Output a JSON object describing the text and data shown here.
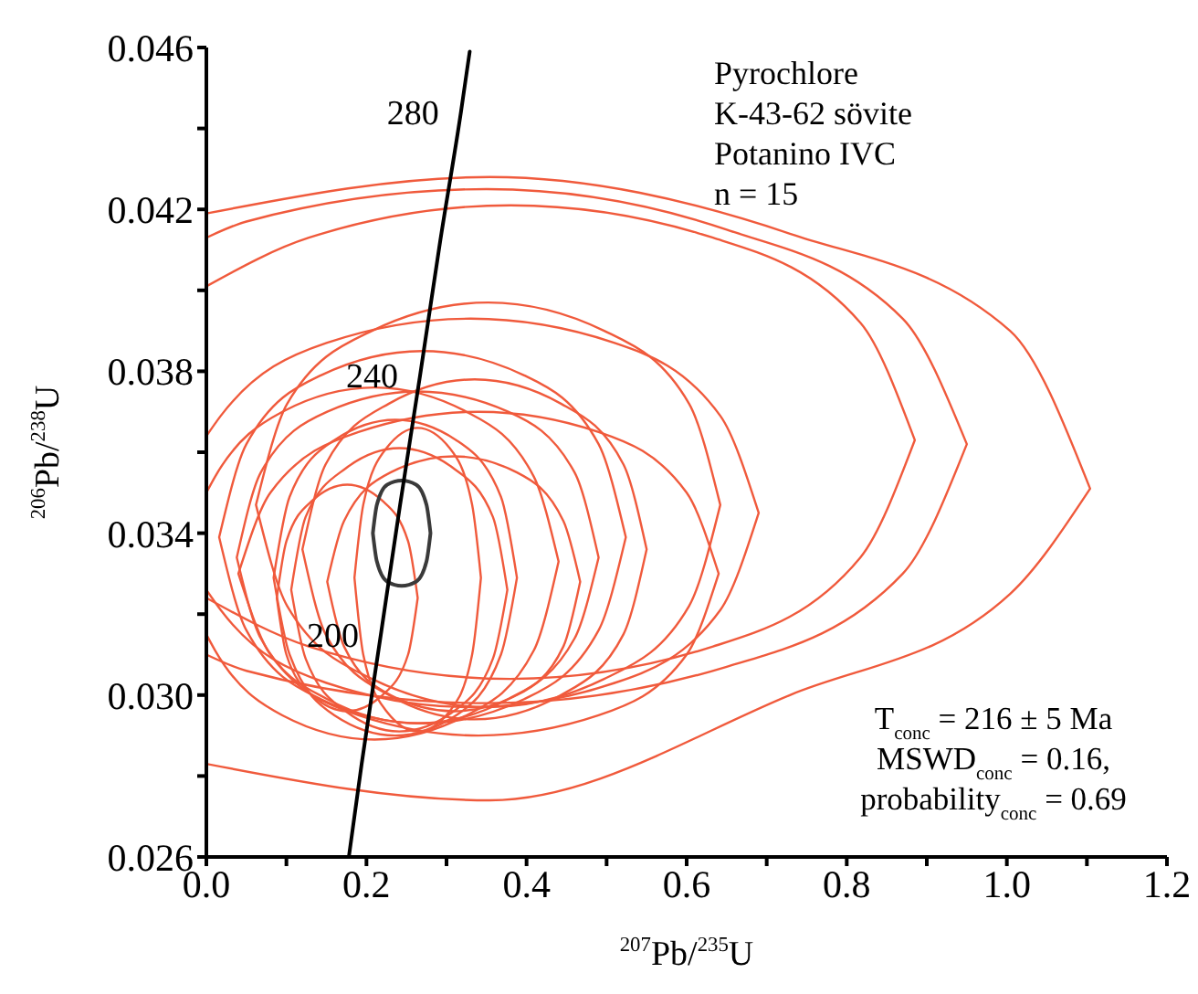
{
  "chart_data": {
    "type": "line",
    "xlabel": "$^{207}$Pb/$^{235}$U",
    "ylabel": "$^{206}$Pb/$^{238}$U",
    "marker": "none",
    "xlim": [
      0,
      1.2
    ],
    "ylim": [
      0.026,
      0.046
    ],
    "xticks": [
      {
        "value": 0,
        "label": "0.0"
      },
      {
        "value": 0.1,
        "label": null
      },
      0.2,
      {
        "value": 0.3,
        "label": null
      },
      0.4,
      {
        "value": 0.5,
        "label": null
      },
      0.6,
      {
        "value": 0.7,
        "label": null
      },
      0.8,
      {
        "value": 0.9,
        "label": null
      },
      {
        "value": 1,
        "label": "1.0"
      },
      {
        "value": 1.1,
        "label": null
      },
      1.2
    ],
    "yticks": [
      0.026,
      {
        "value": 0.028,
        "label": null
      },
      {
        "value": 0.03,
        "label": "0.030"
      },
      {
        "value": 0.032,
        "label": null
      },
      0.034,
      {
        "value": 0.036,
        "label": null
      },
      0.038,
      {
        "value": 0.04,
        "label": null
      },
      0.042,
      {
        "value": 0.044,
        "label": null
      },
      0.046
    ],
    "series": [
      {
        "color": "#f05a3c",
        "x": [
          0,
          0.354,
          0.729,
          1.004,
          1.104,
          null,
          0,
          0.354,
          0.729,
          1.004,
          1.104
        ],
        "values": [
          0.0419,
          0.0428,
          0.0414,
          0.039,
          0.0351,
          null,
          0.0283,
          0.0274,
          0.03,
          0.0325,
          0.0351
        ]
      },
      {
        "color": "#f05a3c",
        "x": [
          0,
          0.05,
          0.35,
          0.65,
          0.87,
          0.95,
          null,
          0,
          0.05,
          0.35,
          0.65,
          0.87,
          0.95
        ],
        "values": [
          0.0413,
          0.0417,
          0.0425,
          0.0415,
          0.0393,
          0.0362,
          null,
          0.031,
          0.0306,
          0.0298,
          0.0307,
          0.033,
          0.0362
        ]
      },
      {
        "color": "#f05a3c",
        "x": [
          0,
          0.128,
          0.38,
          0.633,
          0.817,
          0.885,
          null,
          0,
          0.128,
          0.38,
          0.633,
          0.817,
          0.885
        ],
        "values": [
          0.0401,
          0.0413,
          0.0421,
          0.0413,
          0.0392,
          0.0363,
          null,
          0.0324,
          0.0312,
          0.0304,
          0.0312,
          0.0334,
          0.0363
        ]
      },
      {
        "color": "#f05a3c",
        "x": [
          0.062,
          0.101,
          0.207,
          0.352,
          0.497,
          0.603,
          0.642,
          null,
          0.062,
          0.101,
          0.207,
          0.352,
          0.497,
          0.603,
          0.642
        ],
        "values": [
          0.0347,
          0.0372,
          0.039,
          0.0397,
          0.039,
          0.0372,
          0.0347,
          null,
          0.0347,
          0.0322,
          0.0304,
          0.0297,
          0.0304,
          0.0322,
          0.0347
        ]
      },
      {
        "color": "#f05a3c",
        "x": [
          0,
          0.018,
          0.15,
          0.33,
          0.51,
          0.642,
          0.69,
          null,
          0,
          0.018,
          0.15,
          0.33,
          0.51,
          0.642,
          0.69
        ],
        "values": [
          0.0364,
          0.0369,
          0.0387,
          0.0393,
          0.0387,
          0.0369,
          0.0345,
          null,
          0.0326,
          0.0321,
          0.0303,
          0.0297,
          0.0303,
          0.0321,
          0.0345
        ]
      },
      {
        "color": "#f05a3c",
        "x": [
          0.016,
          0.05,
          0.143,
          0.27,
          0.397,
          0.49,
          0.524,
          null,
          0.016,
          0.05,
          0.143,
          0.27,
          0.397,
          0.49,
          0.524
        ],
        "values": [
          0.0339,
          0.0362,
          0.0379,
          0.0385,
          0.0379,
          0.0362,
          0.0339,
          null,
          0.0339,
          0.0316,
          0.0299,
          0.0293,
          0.0299,
          0.0316,
          0.0339
        ]
      },
      {
        "color": "#f05a3c",
        "x": [
          0,
          0.011,
          0.095,
          0.21,
          0.325,
          0.409,
          0.44,
          null,
          0,
          0.011,
          0.095,
          0.21,
          0.325,
          0.409,
          0.44
        ],
        "values": [
          0.035,
          0.0354,
          0.037,
          0.0376,
          0.037,
          0.0354,
          0.0333,
          null,
          0.0315,
          0.0311,
          0.0295,
          0.0289,
          0.0295,
          0.0311,
          0.0333
        ]
      },
      {
        "color": "#f05a3c",
        "x": [
          0.04,
          0.08,
          0.19,
          0.34,
          0.49,
          0.6,
          0.64,
          null,
          0.04,
          0.08,
          0.19,
          0.34,
          0.49,
          0.6,
          0.64
        ],
        "values": [
          0.033,
          0.035,
          0.0365,
          0.037,
          0.0365,
          0.035,
          0.033,
          null,
          0.033,
          0.031,
          0.0295,
          0.029,
          0.0295,
          0.031,
          0.033
        ]
      },
      {
        "color": "#f05a3c",
        "x": [
          0.084,
          0.104,
          0.16,
          0.236,
          0.312,
          0.368,
          0.388,
          null,
          0.084,
          0.104,
          0.16,
          0.236,
          0.312,
          0.368,
          0.388
        ],
        "values": [
          0.0329,
          0.0349,
          0.0363,
          0.0368,
          0.0363,
          0.0349,
          0.0329,
          null,
          0.0329,
          0.031,
          0.0295,
          0.029,
          0.0295,
          0.031,
          0.0329
        ]
      },
      {
        "color": "#f05a3c",
        "x": [
          0.151,
          0.172,
          0.23,
          0.309,
          0.388,
          0.446,
          0.467,
          null,
          0.151,
          0.172,
          0.23,
          0.309,
          0.388,
          0.446,
          0.467
        ],
        "values": [
          0.0328,
          0.0343,
          0.0355,
          0.0359,
          0.0355,
          0.0343,
          0.0328,
          null,
          0.0328,
          0.0312,
          0.03,
          0.0296,
          0.03,
          0.0312,
          0.0328
        ]
      },
      {
        "color": "#f05a3c",
        "x": [
          0.185,
          0.196,
          0.225,
          0.264,
          0.304,
          0.332,
          0.343,
          null,
          0.185,
          0.196,
          0.225,
          0.264,
          0.304,
          0.332,
          0.343
        ],
        "values": [
          0.0329,
          0.0347,
          0.0361,
          0.0366,
          0.0361,
          0.0347,
          0.0329,
          null,
          0.0329,
          0.031,
          0.0296,
          0.0291,
          0.0296,
          0.031,
          0.0329
        ]
      },
      {
        "color": "#f05a3c",
        "x": [
          0.106,
          0.124,
          0.174,
          0.241,
          0.309,
          0.358,
          0.376,
          null,
          0.106,
          0.124,
          0.174,
          0.241,
          0.309,
          0.358,
          0.376
        ],
        "values": [
          0.0326,
          0.0344,
          0.0356,
          0.0361,
          0.0356,
          0.0344,
          0.0326,
          null,
          0.0326,
          0.0309,
          0.0296,
          0.0291,
          0.0296,
          0.0309,
          0.0326
        ]
      },
      {
        "color": "#f05a3c",
        "x": [
          0.088,
          0.1,
          0.132,
          0.176,
          0.22,
          0.252,
          0.264,
          null,
          0.088,
          0.1,
          0.132,
          0.176,
          0.22,
          0.252,
          0.264
        ],
        "values": [
          0.0324,
          0.0338,
          0.0348,
          0.0352,
          0.0348,
          0.0338,
          0.0324,
          null,
          0.0324,
          0.031,
          0.03,
          0.0296,
          0.03,
          0.031,
          0.0324
        ]
      },
      {
        "color": "#f05a3c",
        "x": [
          0.038,
          0.068,
          0.151,
          0.264,
          0.377,
          0.46,
          0.49,
          null,
          0.038,
          0.068,
          0.151,
          0.264,
          0.377,
          0.46,
          0.49
        ],
        "values": [
          0.0334,
          0.0355,
          0.037,
          0.0375,
          0.037,
          0.0355,
          0.0334,
          null,
          0.0334,
          0.0314,
          0.0299,
          0.0293,
          0.0299,
          0.0314,
          0.0334
        ]
      },
      {
        "color": "#f05a3c",
        "x": [
          0.12,
          0.149,
          0.228,
          0.335,
          0.443,
          0.521,
          0.55,
          null,
          0.12,
          0.149,
          0.228,
          0.335,
          0.443,
          0.521,
          0.55
        ],
        "values": [
          0.0336,
          0.0357,
          0.0372,
          0.0378,
          0.0372,
          0.0357,
          0.0336,
          null,
          0.0336,
          0.0315,
          0.03,
          0.0294,
          0.03,
          0.0315,
          0.0336
        ]
      },
      {
        "color": "#3a3a3a",
        "x": [
          0.208,
          0.213,
          0.226,
          0.244,
          0.262,
          0.275,
          0.28,
          null,
          0.208,
          0.213,
          0.226,
          0.244,
          0.262,
          0.275,
          0.28
        ],
        "values": [
          0.034,
          0.0347,
          0.0352,
          0.0353,
          0.0352,
          0.0347,
          0.034,
          null,
          0.034,
          0.0333,
          0.0328,
          0.0327,
          0.0328,
          0.0333,
          0.034
        ]
      },
      {
        "color": "#000000",
        "x": [
          0.178,
          0.194,
          0.218,
          0.242,
          0.267,
          0.292,
          0.318,
          0.329
        ],
        "values": [
          0.026,
          0.0283,
          0.0315,
          0.0347,
          0.0379,
          0.0412,
          0.0444,
          0.0459
        ]
      }
    ],
    "annotations": [
      "Pyrochlore\nK-43-62 sövite\nPotanino IVC\nn = 15",
      "T$_{conc}$ = 216 ± 5 Ma\nMSWD$_{conc}$ = 0.16,\nprobability$_{conc}$ = 0.69",
      {
        "text": "200",
        "x": 0.218,
        "y": 0.0315
      },
      {
        "text": "240",
        "x": 0.267,
        "y": 0.0379
      },
      {
        "text": "280",
        "x": 0.318,
        "y": 0.0444
      }
    ]
  }
}
